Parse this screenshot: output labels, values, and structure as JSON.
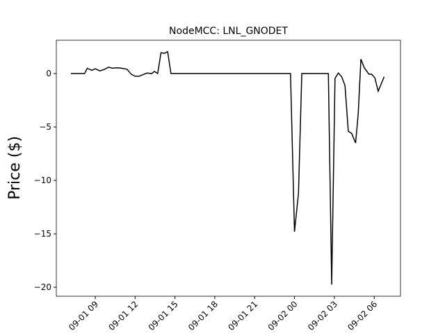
{
  "chart_data": {
    "type": "line",
    "title": "NodeMCC: LNL_GNODET",
    "y_label": "Price ($)",
    "x": [
      7.17,
      8.2,
      8.4,
      8.75,
      9.0,
      9.35,
      9.7,
      10.0,
      10.3,
      10.6,
      11.0,
      11.4,
      11.7,
      12.0,
      12.3,
      12.6,
      12.9,
      13.25,
      13.45,
      13.7,
      13.95,
      14.2,
      14.45,
      14.7,
      23.7,
      24.0,
      24.3,
      24.55,
      26.55,
      26.8,
      27.05,
      27.3,
      27.55,
      27.8,
      28.05,
      28.3,
      28.6,
      28.8,
      29.0,
      29.25,
      29.6,
      29.8,
      30.05,
      30.3,
      30.75
    ],
    "series": [
      {
        "color": "#000000",
        "values": [
          0,
          0,
          0.5,
          0.3,
          0.45,
          0.25,
          0.4,
          0.6,
          0.5,
          0.55,
          0.5,
          0.4,
          -0.05,
          -0.25,
          -0.25,
          -0.1,
          0.05,
          0,
          0.2,
          0,
          1.95,
          1.9,
          2.05,
          0,
          0,
          -14.8,
          -11.2,
          0,
          0,
          -19.75,
          -0.45,
          0.05,
          -0.3,
          -1.1,
          -5.4,
          -5.6,
          -6.5,
          -3.7,
          1.35,
          0.55,
          -0.05,
          -0.05,
          -0.4,
          -1.65,
          -0.3
        ]
      }
    ],
    "xlim": [
      6.07,
      31.98
    ],
    "ylim": [
      -20.84,
      3.12
    ],
    "xticks": [
      {
        "value": 9,
        "label": "09-01 09"
      },
      {
        "value": 12,
        "label": "09-01 12"
      },
      {
        "value": 15,
        "label": "09-01 15"
      },
      {
        "value": 18,
        "label": "09-01 18"
      },
      {
        "value": 21,
        "label": "09-01 21"
      },
      {
        "value": 24,
        "label": "09-02 00"
      },
      {
        "value": 27,
        "label": "09-02 03"
      },
      {
        "value": 30,
        "label": "09-02 06"
      }
    ],
    "yticks": [
      {
        "value": 0,
        "label": "0"
      },
      {
        "value": -5,
        "label": "−5"
      },
      {
        "value": -10,
        "label": "−10"
      },
      {
        "value": -15,
        "label": "−15"
      },
      {
        "value": -20,
        "label": "−20"
      }
    ]
  }
}
